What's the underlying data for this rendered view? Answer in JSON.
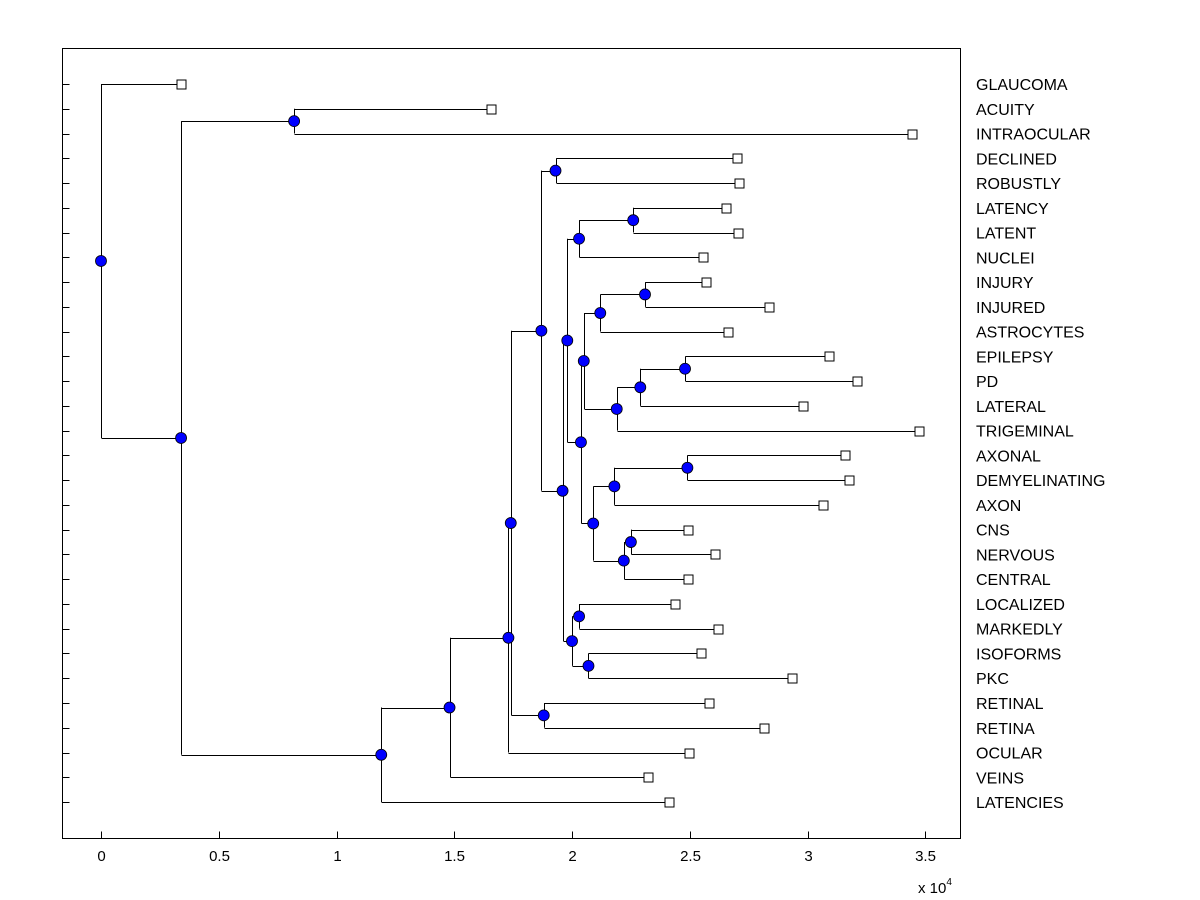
{
  "chart_data": {
    "type": "dendrogram",
    "title": "",
    "xlabel": "",
    "ylabel": "",
    "x_multiplier_label": "x 10",
    "x_multiplier_exponent": "4",
    "xlim": [
      -0.166,
      3.648
    ],
    "xticks": [
      "0",
      "0.5",
      "1",
      "1.5",
      "2",
      "2.5",
      "3",
      "3.5"
    ],
    "xtick_values": [
      0,
      0.5,
      1,
      1.5,
      2,
      2.5,
      3,
      3.5
    ],
    "grid": false,
    "leaf_labels_side": "right",
    "node_color": "#0000ff",
    "leaf_marker": "square",
    "tree": {
      "x": 0,
      "children": [
        {
          "label": "GLAUCOMA",
          "x": 0.34
        },
        {
          "x": 0.34,
          "children": [
            {
              "x": 0.82,
              "children": [
                {
                  "label": "ACUITY",
                  "x": 1.656
                },
                {
                  "label": "INTRAOCULAR",
                  "x": 3.444
                }
              ]
            },
            {
              "x": 1.19,
              "children": [
                {
                  "x": 1.48,
                  "children": [
                    {
                      "x": 1.73,
                      "children": [
                        {
                          "x": 1.74,
                          "children": [
                            {
                              "x": 1.87,
                              "children": [
                                {
                                  "x": 1.93,
                                  "children": [
                                    {
                                      "label": "DECLINED",
                                      "x": 2.7
                                    },
                                    {
                                      "label": "ROBUSTLY",
                                      "x": 2.709
                                    }
                                  ]
                                },
                                {
                                  "x": 1.96,
                                  "children": [
                                    {
                                      "x": 1.98,
                                      "children": [
                                        {
                                          "x": 2.03,
                                          "children": [
                                            {
                                              "x": 2.26,
                                              "children": [
                                                {
                                                  "label": "LATENCY",
                                                  "x": 2.654
                                                },
                                                {
                                                  "label": "LATENT",
                                                  "x": 2.705
                                                }
                                              ]
                                            },
                                            {
                                              "label": "NUCLEI",
                                              "x": 2.556
                                            }
                                          ]
                                        },
                                        {
                                          "x": 2.038,
                                          "children": [
                                            {
                                              "x": 2.05,
                                              "children": [
                                                {
                                                  "x": 2.12,
                                                  "children": [
                                                    {
                                                      "x": 2.31,
                                                      "children": [
                                                        {
                                                          "label": "INJURY",
                                                          "x": 2.569
                                                        },
                                                        {
                                                          "label": "INJURED",
                                                          "x": 2.837
                                                        }
                                                      ]
                                                    },
                                                    {
                                                      "label": "ASTROCYTES",
                                                      "x": 2.662
                                                    }
                                                  ]
                                                },
                                                {
                                                  "x": 2.19,
                                                  "children": [
                                                    {
                                                      "x": 2.29,
                                                      "children": [
                                                        {
                                                          "x": 2.48,
                                                          "children": [
                                                            {
                                                              "label": "EPILEPSY",
                                                              "x": 3.091
                                                            },
                                                            {
                                                              "label": "PD",
                                                              "x": 3.21
                                                            }
                                                          ]
                                                        },
                                                        {
                                                          "label": "LATERAL",
                                                          "x": 2.981
                                                        }
                                                      ]
                                                    },
                                                    {
                                                      "label": "TRIGEMINAL",
                                                      "x": 3.473
                                                    }
                                                  ]
                                                }
                                              ]
                                            },
                                            {
                                              "x": 2.09,
                                              "children": [
                                                {
                                                  "x": 2.18,
                                                  "children": [
                                                    {
                                                      "x": 2.49,
                                                      "children": [
                                                        {
                                                          "label": "AXONAL",
                                                          "x": 3.159
                                                        },
                                                        {
                                                          "label": "DEMYELINATING",
                                                          "x": 3.176
                                                        }
                                                      ]
                                                    },
                                                    {
                                                      "label": "AXON",
                                                      "x": 3.066
                                                    }
                                                  ]
                                                },
                                                {
                                                  "x": 2.22,
                                                  "children": [
                                                    {
                                                      "x": 2.25,
                                                      "children": [
                                                        {
                                                          "label": "CNS",
                                                          "x": 2.493
                                                        },
                                                        {
                                                          "label": "NERVOUS",
                                                          "x": 2.607
                                                        }
                                                      ]
                                                    },
                                                    {
                                                      "label": "CENTRAL",
                                                      "x": 2.493
                                                    }
                                                  ]
                                                }
                                              ]
                                            }
                                          ]
                                        }
                                      ]
                                    },
                                    {
                                      "x": 2.0,
                                      "children": [
                                        {
                                          "x": 2.03,
                                          "children": [
                                            {
                                              "label": "LOCALIZED",
                                              "x": 2.437
                                            },
                                            {
                                              "label": "MARKEDLY",
                                              "x": 2.62
                                            }
                                          ]
                                        },
                                        {
                                          "x": 2.07,
                                          "children": [
                                            {
                                              "label": "ISOFORMS",
                                              "x": 2.548
                                            },
                                            {
                                              "label": "PKC",
                                              "x": 2.934
                                            }
                                          ]
                                        }
                                      ]
                                    }
                                  ]
                                }
                              ]
                            },
                            {
                              "x": 1.88,
                              "children": [
                                {
                                  "label": "RETINAL",
                                  "x": 2.582
                                },
                                {
                                  "label": "RETINA",
                                  "x": 2.815
                                }
                              ]
                            }
                          ]
                        },
                        {
                          "label": "OCULAR",
                          "x": 2.497
                        }
                      ]
                    },
                    {
                      "label": "VEINS",
                      "x": 2.323
                    }
                  ]
                },
                {
                  "label": "LATENCIES",
                  "x": 2.412
                }
              ]
            }
          ]
        }
      ]
    }
  }
}
